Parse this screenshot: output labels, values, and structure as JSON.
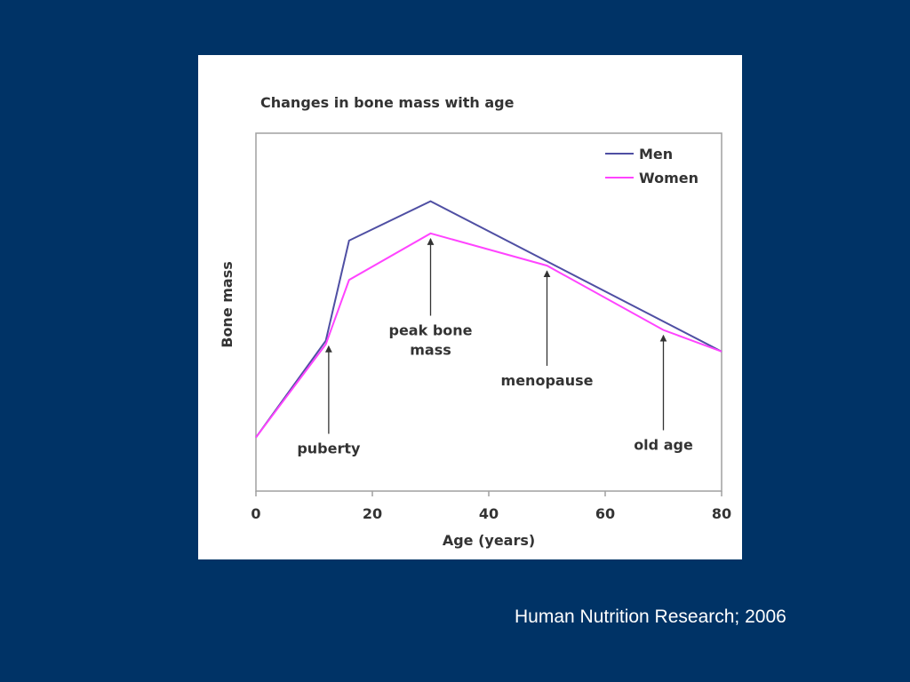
{
  "slide": {
    "citation": "Human Nutrition Research; 2006",
    "background_color": "#003366"
  },
  "chart_data": {
    "type": "line",
    "title": "Changes in bone mass with age",
    "xlabel": "Age (years)",
    "ylabel": "Bone mass",
    "xlim": [
      0,
      80
    ],
    "ylim": [
      0,
      100
    ],
    "x_ticks": [
      0,
      20,
      40,
      60,
      80
    ],
    "y_ticks": [],
    "grid": false,
    "legend": {
      "position": "top-right",
      "entries": [
        "Men",
        "Women"
      ]
    },
    "series": [
      {
        "name": "Men",
        "color": "#4f4fa3",
        "x": [
          0,
          12,
          16,
          30,
          80
        ],
        "y": [
          15,
          42,
          70,
          81,
          39
        ]
      },
      {
        "name": "Women",
        "color": "#ff44ff",
        "x": [
          0,
          12,
          16,
          30,
          50,
          70,
          80
        ],
        "y": [
          15,
          41,
          59,
          72,
          63,
          45,
          39
        ]
      }
    ],
    "annotations": [
      {
        "lines": [
          "puberty"
        ],
        "x": 12.5,
        "y": 42,
        "arrow_start_y": 16
      },
      {
        "lines": [
          "peak bone",
          "mass"
        ],
        "x": 30,
        "y": 72,
        "arrow_start_y": 49
      },
      {
        "lines": [
          "menopause"
        ],
        "x": 50,
        "y": 63,
        "arrow_start_y": 35
      },
      {
        "lines": [
          "old age"
        ],
        "x": 70,
        "y": 45,
        "arrow_start_y": 17
      }
    ]
  }
}
